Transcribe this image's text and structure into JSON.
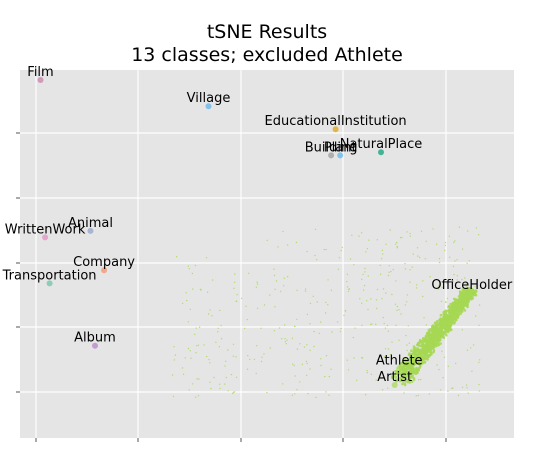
{
  "chart_data": {
    "type": "scatter",
    "title": "tSNE Results",
    "subtitle": "13 classes; excluded Athlete",
    "xlabel": "",
    "ylabel": "",
    "xlim": [
      0,
      100
    ],
    "ylim": [
      0,
      100
    ],
    "grid": true,
    "background": "#e5e5e5",
    "point_color": "#a6d854",
    "class_labels": [
      {
        "text": "Film",
        "x": 1,
        "y": 100,
        "color": "#cc79a7"
      },
      {
        "text": "Village",
        "x": 38,
        "y": 92,
        "color": "#56b4e9"
      },
      {
        "text": "EducationalInstitution",
        "x": 66,
        "y": 85,
        "color": "#e69f00"
      },
      {
        "text": "NaturalPlace",
        "x": 76,
        "y": 78,
        "color": "#009e73"
      },
      {
        "text": "Plant",
        "x": 67,
        "y": 77,
        "color": "#56b4e9"
      },
      {
        "text": "Building",
        "x": 65,
        "y": 77,
        "color": "#999999"
      },
      {
        "text": "Animal",
        "x": 12,
        "y": 54,
        "color": "#8da0cb"
      },
      {
        "text": "WrittenWork",
        "x": 2,
        "y": 52,
        "color": "#e78ac3"
      },
      {
        "text": "Company",
        "x": 15,
        "y": 42,
        "color": "#fc8d62"
      },
      {
        "text": "Transportation",
        "x": 3,
        "y": 38,
        "color": "#66c2a5"
      },
      {
        "text": "Album",
        "x": 13,
        "y": 19,
        "color": "#b47cc7"
      },
      {
        "text": "OfficeHolder",
        "x": 96,
        "y": 35,
        "color": "#a6d854"
      },
      {
        "text": "Athlete",
        "x": 80,
        "y": 12,
        "color": "#a6d854"
      },
      {
        "text": "Artist",
        "x": 79,
        "y": 7,
        "color": "#a6d854"
      }
    ],
    "main_cluster": {
      "start": [
        80,
        7
      ],
      "end": [
        96,
        35
      ]
    }
  }
}
